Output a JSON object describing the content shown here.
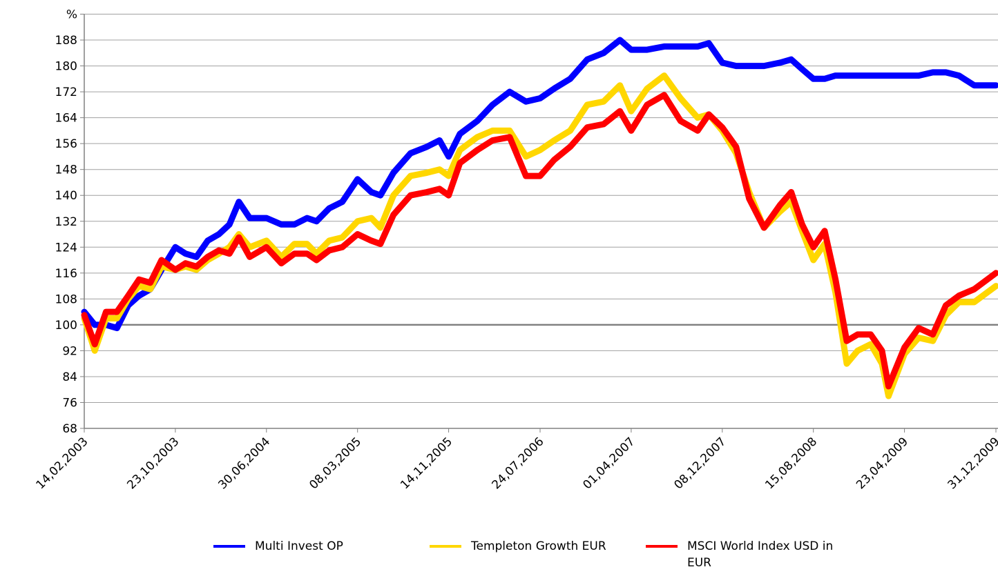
{
  "chart_data": {
    "type": "line",
    "x": [
      "2003-02-14",
      "2003-03-15",
      "2003-04-15",
      "2003-05-15",
      "2003-06-15",
      "2003-07-15",
      "2003-08-15",
      "2003-09-15",
      "2003-10-23",
      "2003-11-20",
      "2003-12-20",
      "2004-01-20",
      "2004-02-20",
      "2004-03-20",
      "2004-04-15",
      "2004-05-15",
      "2004-06-30",
      "2004-08-10",
      "2004-09-15",
      "2004-10-20",
      "2004-11-15",
      "2004-12-20",
      "2005-01-25",
      "2005-03-08",
      "2005-04-15",
      "2005-05-10",
      "2005-06-15",
      "2005-08-01",
      "2005-09-15",
      "2005-10-20",
      "2005-11-14",
      "2005-12-15",
      "2006-02-01",
      "2006-03-15",
      "2006-05-01",
      "2006-06-15",
      "2006-07-24",
      "2006-09-01",
      "2006-10-15",
      "2006-12-01",
      "2007-01-15",
      "2007-03-01",
      "2007-04-01",
      "2007-05-15",
      "2007-07-01",
      "2007-08-15",
      "2007-10-01",
      "2007-11-01",
      "2007-12-08",
      "2008-01-15",
      "2008-02-20",
      "2008-04-01",
      "2008-05-15",
      "2008-06-15",
      "2008-07-15",
      "2008-08-15",
      "2008-09-15",
      "2008-10-15",
      "2008-11-15",
      "2008-12-15",
      "2009-01-20",
      "2009-02-20",
      "2009-03-10",
      "2009-04-23",
      "2009-06-01",
      "2009-07-10",
      "2009-08-15",
      "2009-09-20",
      "2009-11-01",
      "2009-12-31"
    ],
    "series": [
      {
        "name": "Multi Invest OP",
        "color": "#0000ff",
        "values": [
          104,
          100,
          100,
          99,
          106,
          109,
          111,
          117,
          124,
          122,
          121,
          126,
          128,
          131,
          138,
          133,
          133,
          131,
          131,
          133,
          132,
          136,
          138,
          145,
          141,
          140,
          147,
          153,
          155,
          157,
          152,
          159,
          163,
          168,
          172,
          169,
          170,
          173,
          176,
          182,
          184,
          188,
          185,
          185,
          186,
          186,
          186,
          187,
          181,
          180,
          180,
          180,
          181,
          182,
          179,
          176,
          176,
          177,
          177,
          177,
          177,
          177,
          177,
          177,
          177,
          178,
          178,
          177,
          174,
          174
        ]
      },
      {
        "name": "Templeton Growth EUR",
        "color": "#ffd700",
        "values": [
          102,
          92,
          102,
          102,
          108,
          112,
          111,
          118,
          117,
          118,
          117,
          120,
          122,
          124,
          128,
          124,
          126,
          121,
          125,
          125,
          122,
          126,
          127,
          132,
          133,
          130,
          140,
          146,
          147,
          148,
          146,
          154,
          158,
          160,
          160,
          152,
          154,
          157,
          160,
          168,
          169,
          174,
          166,
          173,
          177,
          170,
          164,
          165,
          160,
          153,
          141,
          130,
          135,
          138,
          129,
          120,
          125,
          110,
          88,
          92,
          94,
          88,
          78,
          91,
          96,
          95,
          103,
          107,
          107,
          112
        ]
      },
      {
        "name": "MSCI World Index USD in EUR",
        "color": "#ff0000",
        "values": [
          103,
          94,
          104,
          104,
          109,
          114,
          113,
          120,
          117,
          119,
          118,
          121,
          123,
          122,
          127,
          121,
          124,
          119,
          122,
          122,
          120,
          123,
          124,
          128,
          126,
          125,
          134,
          140,
          141,
          142,
          140,
          150,
          154,
          157,
          158,
          146,
          146,
          151,
          155,
          161,
          162,
          166,
          160,
          168,
          171,
          163,
          160,
          165,
          161,
          155,
          139,
          130,
          137,
          141,
          131,
          124,
          129,
          114,
          95,
          97,
          97,
          92,
          81,
          93,
          99,
          97,
          106,
          109,
          111,
          116
        ]
      }
    ],
    "xlim": [
      "2003-02-14",
      "2009-12-31"
    ],
    "xticks": [
      {
        "value": "2003-02-14",
        "label": "14,02,2003"
      },
      {
        "value": "2003-10-23",
        "label": "23,10,2003"
      },
      {
        "value": "2004-06-30",
        "label": "30,06,2004"
      },
      {
        "value": "2005-03-08",
        "label": "08,03,2005"
      },
      {
        "value": "2005-11-14",
        "label": "14,11,2005"
      },
      {
        "value": "2006-07-24",
        "label": "24,07,2006"
      },
      {
        "value": "2007-04-01",
        "label": "01,04,2007"
      },
      {
        "value": "2007-12-08",
        "label": "08,12,2007"
      },
      {
        "value": "2008-08-15",
        "label": "15,08,2008"
      },
      {
        "value": "2009-04-23",
        "label": "23,04,2009"
      },
      {
        "value": "2009-12-31",
        "label": "31,12,2009"
      }
    ],
    "ylim": [
      68,
      196
    ],
    "yticks": [
      68,
      76,
      84,
      92,
      100,
      108,
      116,
      124,
      132,
      140,
      148,
      156,
      164,
      172,
      180,
      188,
      {
        "value": 196,
        "label": "%"
      }
    ],
    "baseline": 100,
    "grid": true
  }
}
